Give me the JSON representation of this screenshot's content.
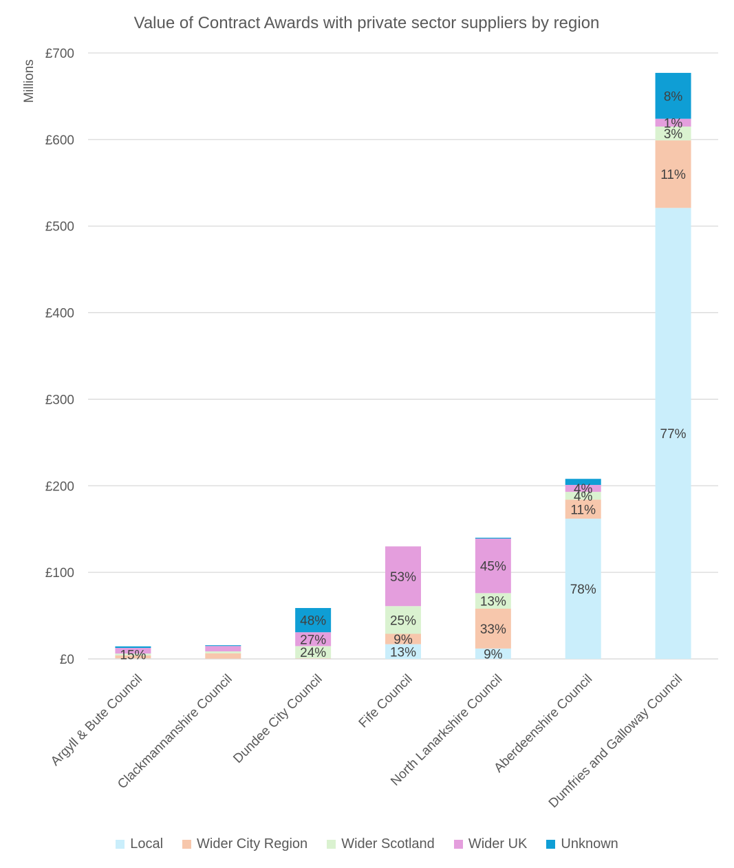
{
  "chart_data": {
    "type": "bar",
    "stacked": true,
    "title": "Value of Contract Awards with private sector suppliers by region",
    "ylabel": "Millions",
    "xlabel": "",
    "ylim": [
      0,
      700
    ],
    "yticks": [
      0,
      100,
      200,
      300,
      400,
      500,
      600,
      700
    ],
    "ytick_labels": [
      "£0",
      "£100",
      "£200",
      "£300",
      "£400",
      "£500",
      "£600",
      "£700"
    ],
    "grid": true,
    "legend_position": "bottom",
    "categories": [
      "Argyll & Bute Council",
      "Clackmannanshire Council",
      "Dundee City Council",
      "Fife Council",
      "North Lanarkshire Council",
      "Aberdeenshire Council",
      "Dumfries and Galloway Council"
    ],
    "series": [
      {
        "name": "Local",
        "color": "#CAEEFB",
        "values": [
          0.4,
          0.2,
          0.3,
          17,
          12,
          162,
          521
        ],
        "labels": [
          "",
          "",
          "",
          "13%",
          "9%",
          "78%",
          "77%"
        ]
      },
      {
        "name": "Wider City Region",
        "color": "#F7C7AC",
        "values": [
          3.6,
          6.3,
          0.5,
          12,
          46,
          22,
          78
        ],
        "labels": [
          "",
          "",
          "",
          "9%",
          "33%",
          "11%",
          "11%"
        ]
      },
      {
        "name": "Wider Scotland",
        "color": "#DAF2D0",
        "values": [
          2.2,
          2.2,
          14,
          32,
          18,
          9,
          16
        ],
        "labels": [
          "15%",
          "",
          "24%",
          "25%",
          "13%",
          "4%",
          "3%"
        ]
      },
      {
        "name": "Wider UK",
        "color": "#E49EDD",
        "values": [
          6.5,
          6.2,
          16,
          69,
          63,
          8,
          9
        ],
        "labels": [
          "",
          "",
          "27%",
          "53%",
          "45%",
          "4%",
          "1%"
        ]
      },
      {
        "name": "Unknown",
        "color": "#0F9ED5",
        "values": [
          1.8,
          0.9,
          28,
          0,
          1,
          7,
          53
        ],
        "labels": [
          "",
          "",
          "48%",
          "",
          "",
          "",
          "8%"
        ]
      }
    ]
  }
}
